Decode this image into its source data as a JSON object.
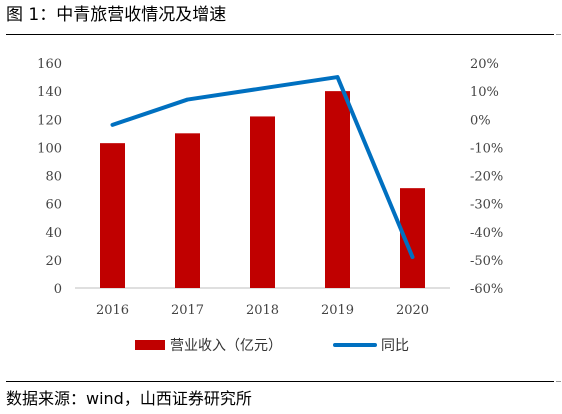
{
  "figure": {
    "title": "图 1：中青旅营收情况及增速",
    "source": "数据来源：wind，山西证券研究所"
  },
  "chart_data": {
    "type": "bar",
    "categories": [
      "2016",
      "2017",
      "2018",
      "2019",
      "2020"
    ],
    "series": [
      {
        "name": "营业收入（亿元）",
        "type": "bar",
        "axis": "left",
        "values": [
          103,
          110,
          122,
          140,
          71
        ],
        "color": "#C00000"
      },
      {
        "name": "同比",
        "type": "line",
        "axis": "right",
        "values": [
          -2,
          7,
          11,
          15,
          -49
        ],
        "unit": "%",
        "color": "#0070C0"
      }
    ],
    "ylim": [
      0,
      160
    ],
    "y_ticks": [
      "0",
      "20",
      "40",
      "60",
      "80",
      "100",
      "120",
      "140",
      "160"
    ],
    "y2lim": [
      -60,
      20
    ],
    "y2_ticks": [
      "-60%",
      "-50%",
      "-40%",
      "-30%",
      "-20%",
      "-10%",
      "0%",
      "10%",
      "20%"
    ],
    "legend_position": "bottom",
    "grid": false
  }
}
